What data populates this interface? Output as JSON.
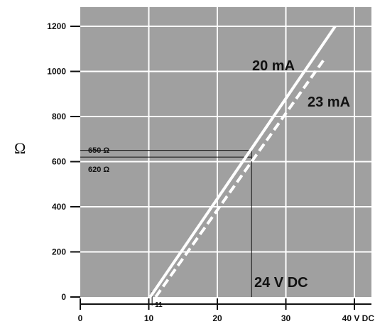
{
  "chart_data": {
    "type": "line",
    "title": "",
    "xlabel": "",
    "ylabel": "Ω",
    "xlim": [
      0,
      41
    ],
    "ylim": [
      0,
      1240
    ],
    "x_ticks": [
      0,
      10,
      20,
      30
    ],
    "x_tick_labels": [
      "0",
      "10",
      "20",
      "30"
    ],
    "x_end_label": "40 V DC",
    "y_ticks": [
      0,
      200,
      400,
      600,
      800,
      1000,
      1200
    ],
    "y_tick_labels": [
      "0",
      "200",
      "400",
      "600",
      "800",
      "1000",
      "1200"
    ],
    "grid": true,
    "series": [
      {
        "name": "20 mA",
        "style": "solid",
        "color": "#ffffff",
        "x": [
          10.2,
          37.2
        ],
        "y": [
          0,
          1200
        ]
      },
      {
        "name": "23 mA",
        "style": "dashed",
        "color": "#ffffff",
        "x": [
          11.0,
          35.5
        ],
        "y": [
          0,
          1050
        ]
      }
    ],
    "annotations": {
      "load_650": "650 Ω",
      "load_620": "620 Ω",
      "supply": "24 V DC",
      "min_voltage": "11",
      "ref_x": 25,
      "ref_y_650": 650,
      "ref_y_620": 620,
      "min_x": 11
    },
    "colors": {
      "plot_bg": "#a0a0a0",
      "grid": "#ffffff",
      "line": "#ffffff",
      "text": "#111111"
    }
  }
}
